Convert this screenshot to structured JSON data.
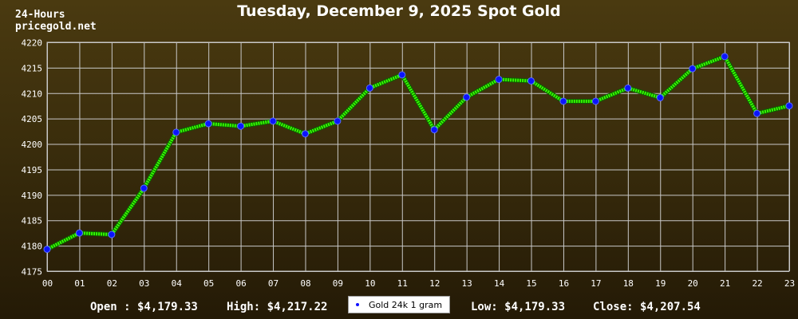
{
  "header": {
    "period_label": "24-Hours",
    "site_label": "pricegold.net"
  },
  "stats": {
    "open": "Open : $4,179.33",
    "high": "High: $4,217.22",
    "low": "Low: $4,179.33",
    "close": "Close: $4,207.54"
  },
  "colors": {
    "line": "#33ff00",
    "marker": "#0a14ff",
    "grid": "#c8c8c8",
    "text": "#ffffff"
  },
  "chart_data": {
    "type": "line",
    "title": "Tuesday, December 9, 2025 Spot Gold",
    "xlabel": "",
    "ylabel": "",
    "categories": [
      "00",
      "01",
      "02",
      "03",
      "04",
      "05",
      "06",
      "07",
      "08",
      "09",
      "10",
      "11",
      "12",
      "13",
      "14",
      "15",
      "16",
      "17",
      "18",
      "19",
      "20",
      "21",
      "22",
      "23"
    ],
    "ylim": [
      4175,
      4220
    ],
    "yticks": [
      4175,
      4180,
      4185,
      4190,
      4195,
      4200,
      4205,
      4210,
      4215,
      4220
    ],
    "grid": true,
    "legend_position": "bottom-center",
    "series": [
      {
        "name": "Gold 24k 1 gram",
        "values": [
          4179.3,
          4182.5,
          4182.2,
          4191.3,
          4202.3,
          4204.0,
          4203.5,
          4204.5,
          4202.0,
          4204.5,
          4211.0,
          4213.6,
          4202.8,
          4209.2,
          4212.7,
          4212.4,
          4208.4,
          4208.4,
          4211.0,
          4209.1,
          4214.8,
          4217.2,
          4206.0,
          4207.5
        ]
      }
    ]
  }
}
